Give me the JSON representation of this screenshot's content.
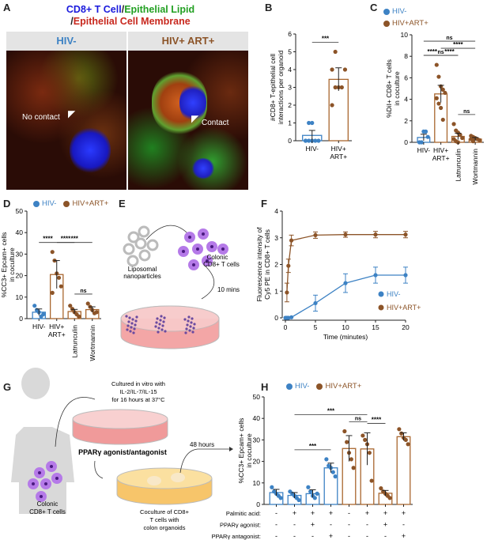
{
  "panel_labels": [
    "A",
    "B",
    "C",
    "D",
    "E",
    "F",
    "G",
    "H"
  ],
  "colors": {
    "hiv_neg": "#3d82c4",
    "hiv_pos": "#8c5428",
    "bar_pos": "#a9672f"
  },
  "panel_a": {
    "title_parts": [
      "CD8+ T Cell",
      "/",
      "Epithelial Lipid",
      "/",
      "Epithelial Cell Membrane"
    ],
    "title_colors": [
      "#1a1adc",
      "#222",
      "#22a022",
      "#222",
      "#c8281e"
    ],
    "images": [
      {
        "header": "HIV-",
        "header_color": "#3d82c4",
        "annotation": "No contact"
      },
      {
        "header": "HIV+ ART+",
        "header_color": "#8c5428",
        "annotation": "Contact"
      }
    ]
  },
  "legend": {
    "hiv_neg": "HIV-",
    "hiv_pos": "HIV+ART+"
  },
  "panel_e": {
    "nanoparticles": [
      "Liposomal",
      "nanoparticles"
    ],
    "cells": [
      "Colonic",
      "CD8+ T cells"
    ],
    "time": "10 mins"
  },
  "panel_g": {
    "culture": [
      "Cultured in vitro with",
      "IL-2/IL-7/IL-15",
      "for 16 hours at 37°C"
    ],
    "treatment": "PPARγ agonist/antagonist",
    "time": "48 hours",
    "coculture": [
      "Coculture of CD8+",
      "T cells with",
      "colon organoids"
    ],
    "cells": [
      "Colonic",
      "CD8+ T cells"
    ]
  },
  "chart_data": [
    {
      "panel": "B",
      "type": "bar",
      "ylabel": [
        "#CD8+ T-epithelial cell",
        "interactions per organoid"
      ],
      "ylim": [
        0,
        6
      ],
      "yticks": [
        0,
        1,
        2,
        3,
        4,
        5,
        6
      ],
      "categories": [
        [
          "HIV-"
        ],
        [
          "HIV+",
          "ART+"
        ]
      ],
      "group": [
        "neg",
        "pos"
      ],
      "values": [
        0.3,
        3.45
      ],
      "errors": [
        0.28,
        0.65
      ],
      "points": [
        [
          0,
          0,
          0,
          0,
          0,
          0,
          1,
          1
        ],
        [
          2,
          3,
          3,
          3,
          4,
          4,
          5
        ]
      ],
      "significance": [
        {
          "from": 0,
          "to": 1,
          "label": "***"
        }
      ]
    },
    {
      "panel": "C",
      "type": "bar",
      "ylabel": [
        "%DiI+ CD8+ T cells",
        "in coculture"
      ],
      "ylim": [
        0,
        10
      ],
      "yticks": [
        0,
        2,
        4,
        6,
        8,
        10
      ],
      "categories": [
        [
          "HIV-"
        ],
        [
          "HIV+",
          "ART+"
        ],
        [
          "Latrunculin"
        ],
        [
          "Wortmannin"
        ]
      ],
      "rotated": [
        false,
        false,
        true,
        true
      ],
      "group": [
        "neg",
        "pos",
        "pos",
        "pos"
      ],
      "values": [
        0.45,
        4.5,
        0.55,
        0.3
      ],
      "errors": [
        0.3,
        0.8,
        0.3,
        0.15
      ],
      "points": [
        [
          0,
          0,
          1,
          1,
          0.5
        ],
        [
          7.2,
          6.1,
          5.2,
          4.9,
          4.6,
          4.1,
          3.6,
          3.2,
          2.1
        ],
        [
          1.7,
          1.1,
          0.9,
          0.7,
          0.4,
          0.3,
          0.1,
          0
        ],
        [
          0.6,
          0.5,
          0.4,
          0.3,
          0.2,
          0.3,
          0.1
        ]
      ],
      "significance": [
        {
          "from": 0,
          "to": 1,
          "label": "****"
        },
        {
          "from": 1,
          "to": 2,
          "label": "****"
        },
        {
          "from": 2,
          "to": 3,
          "label": "ns"
        },
        {
          "from": 0,
          "to": 2,
          "label": "ns"
        },
        {
          "from": 1,
          "to": 3,
          "label": "****"
        },
        {
          "from": 0,
          "to": 3,
          "label": "ns"
        }
      ]
    },
    {
      "panel": "D",
      "type": "bar",
      "ylabel": [
        "%CC3+ Epcam+ cells",
        "in coculture"
      ],
      "ylim": [
        0,
        50
      ],
      "yticks": [
        0,
        10,
        20,
        30,
        40,
        50
      ],
      "categories": [
        [
          "HIV-"
        ],
        [
          "HIV+",
          "ART+"
        ],
        [
          "Latrunculin"
        ],
        [
          "Wortmannin"
        ]
      ],
      "rotated": [
        false,
        false,
        true,
        true
      ],
      "group": [
        "neg",
        "pos",
        "pos",
        "pos"
      ],
      "values": [
        3,
        20.5,
        3.3,
        4.2
      ],
      "errors": [
        1.5,
        6.5,
        1,
        1.3
      ],
      "points": [
        [
          6,
          4,
          3,
          1,
          2
        ],
        [
          31,
          27,
          21,
          19,
          15,
          12
        ],
        [
          6,
          4.5,
          3,
          2,
          1
        ],
        [
          7,
          5.5,
          4,
          2.5,
          3
        ]
      ],
      "significance": [
        {
          "from": 0,
          "to": 1,
          "label": "****"
        },
        {
          "from": 1,
          "to": 2,
          "label": "****"
        },
        {
          "from": 2,
          "to": 3,
          "label": "ns"
        },
        {
          "from": 1,
          "to": 3,
          "label": "***"
        }
      ]
    },
    {
      "panel": "F",
      "type": "line",
      "xlabel": "Time (minutes)",
      "ylabel": [
        "Fluorescence intensity of",
        "Cy5 PE in CD8+ T cells"
      ],
      "xlim": [
        0,
        20
      ],
      "ylim": [
        0,
        4
      ],
      "xticks": [
        0,
        5,
        10,
        15,
        20
      ],
      "yticks": [
        0,
        1,
        2,
        3,
        4
      ],
      "legend": "right",
      "series": [
        {
          "name": "HIV-",
          "group": "neg",
          "x": [
            0,
            0.25,
            0.5,
            1,
            5,
            10,
            15,
            20
          ],
          "y": [
            0,
            0,
            0,
            0.02,
            0.55,
            1.3,
            1.6,
            1.6
          ],
          "err": [
            0,
            0,
            0,
            0,
            0.3,
            0.35,
            0.3,
            0.3
          ]
        },
        {
          "name": "HIV+ART+",
          "group": "pos",
          "x": [
            0.25,
            0.5,
            1,
            5,
            10,
            15,
            20
          ],
          "y": [
            0.95,
            1.95,
            2.9,
            3.1,
            3.12,
            3.12,
            3.12
          ],
          "err": [
            0.35,
            0.25,
            0.2,
            0.12,
            0.1,
            0.12,
            0.12
          ]
        }
      ]
    },
    {
      "panel": "H",
      "type": "bar",
      "ylabel": [
        "%CC3+ Epcam+ cells",
        "in coculture"
      ],
      "ylim": [
        0,
        50
      ],
      "yticks": [
        0,
        10,
        20,
        30,
        40,
        50
      ],
      "group": [
        "neg",
        "neg",
        "neg",
        "neg",
        "pos",
        "pos",
        "pos",
        "pos"
      ],
      "values": [
        5.5,
        4.2,
        5,
        17,
        26,
        25.8,
        5.2,
        31.5
      ],
      "errors": [
        1.5,
        1.3,
        1.8,
        2.2,
        6,
        7.5,
        1.3,
        1.8
      ],
      "points": [
        [
          8,
          6,
          5,
          4,
          3
        ],
        [
          6,
          5,
          4,
          3,
          2
        ],
        [
          8,
          6,
          4,
          3,
          5
        ],
        [
          21,
          18,
          17,
          15,
          13
        ],
        [
          34,
          29,
          24,
          21,
          17
        ],
        [
          32,
          30,
          28,
          24,
          11
        ],
        [
          7.5,
          6,
          5,
          4,
          3
        ],
        [
          35,
          33,
          31,
          30,
          28
        ]
      ],
      "conditions": [
        {
          "label": "Palmitic acid:",
          "values": [
            "-",
            "+",
            "+",
            "+",
            "-",
            "+",
            "+",
            "+"
          ]
        },
        {
          "label": "PPARγ agonist:",
          "values": [
            "-",
            "-",
            "+",
            "-",
            "-",
            "-",
            "+",
            "-"
          ]
        },
        {
          "label": "PPARγ antagonist:",
          "values": [
            "-",
            "-",
            "-",
            "+",
            "-",
            "-",
            "-",
            "+"
          ]
        }
      ],
      "significance": [
        {
          "from": 1,
          "to": 3,
          "label": "***"
        },
        {
          "from": 5,
          "to": 6,
          "label": "****"
        },
        {
          "from": 4,
          "to": 5,
          "label": "ns"
        },
        {
          "from": 1,
          "to": 5,
          "label": "***"
        }
      ]
    }
  ]
}
